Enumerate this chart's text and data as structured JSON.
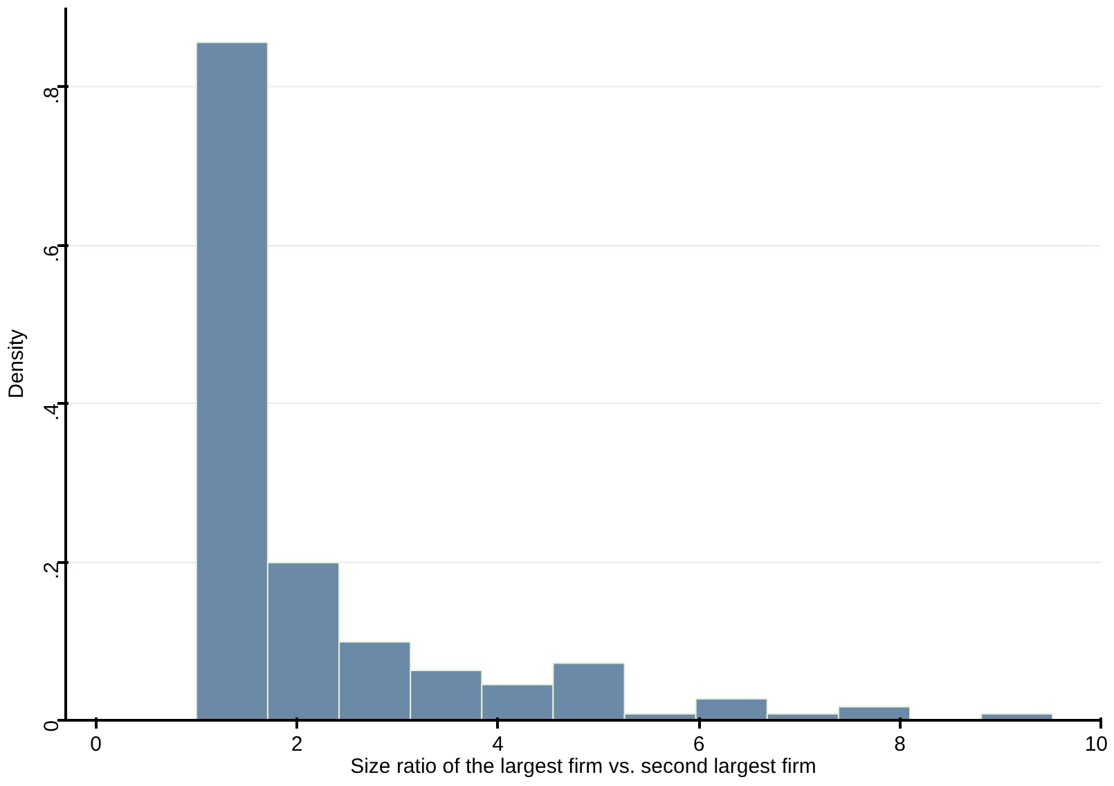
{
  "chart_data": {
    "type": "histogram",
    "xlabel": "Size ratio of the largest firm vs. second largest firm",
    "ylabel": "Density",
    "bins": [
      1,
      1.71,
      2.42,
      3.13,
      3.84,
      4.55,
      5.26,
      5.97,
      6.68,
      7.39,
      8.1,
      8.81,
      9.52
    ],
    "values": [
      0.856,
      0.199,
      0.099,
      0.063,
      0.045,
      0.072,
      0.008,
      0.027,
      0.008,
      0.017,
      0,
      0.008
    ],
    "color": "#6b8aa8",
    "xlim": [
      -0.3,
      10
    ],
    "ylim": [
      0,
      0.9
    ],
    "xticks": [
      0,
      2,
      4,
      6,
      8,
      10
    ],
    "yticks": [
      {
        "value": 0,
        "label": "0"
      },
      {
        "value": 0.2,
        "label": ".2"
      },
      {
        "value": 0.4,
        "label": ".4"
      },
      {
        "value": 0.6,
        "label": ".6"
      },
      {
        "value": 0.8,
        "label": ".8"
      }
    ],
    "grid": "y"
  }
}
